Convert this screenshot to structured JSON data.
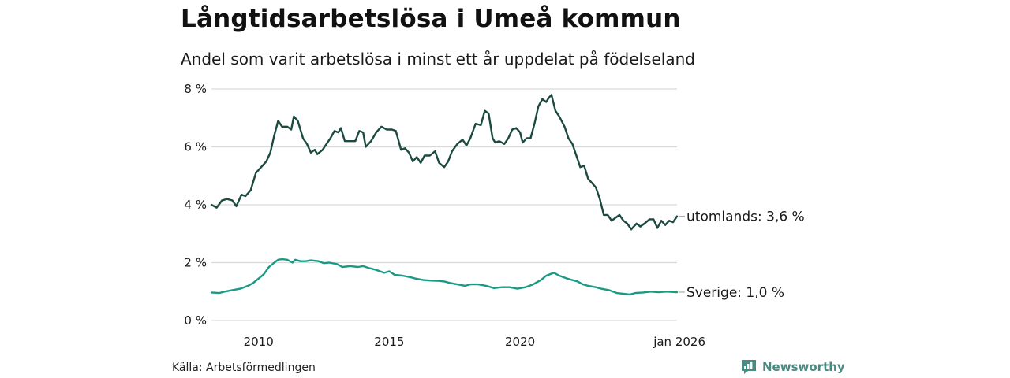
{
  "chart_data": {
    "type": "line",
    "title": "Långtidsarbetslösa i Umeå kommun",
    "subtitle": "Andel som varit arbetslösa i minst ett år uppdelat på födelseland",
    "xlabel": "",
    "ylabel": "",
    "xlim": [
      2008.2,
      2026.0
    ],
    "ylim": [
      0,
      8
    ],
    "grid": true,
    "y_ticks": [
      {
        "value": 0,
        "label": "0 %"
      },
      {
        "value": 2,
        "label": "2 %"
      },
      {
        "value": 4,
        "label": "4 %"
      },
      {
        "value": 6,
        "label": "6 %"
      },
      {
        "value": 8,
        "label": "8 %"
      }
    ],
    "x_ticks": [
      {
        "value": 2010,
        "label": "2010"
      },
      {
        "value": 2015,
        "label": "2015"
      },
      {
        "value": 2020,
        "label": "2020"
      },
      {
        "value": 2026.0,
        "label": "jan 2026"
      }
    ],
    "series": [
      {
        "name": "utomlands",
        "color": "#1c4a40",
        "end_label": "utomlands: 3,6 %",
        "points": [
          [
            2008.2,
            4.0
          ],
          [
            2008.4,
            3.9
          ],
          [
            2008.6,
            4.15
          ],
          [
            2008.8,
            4.2
          ],
          [
            2009.0,
            4.15
          ],
          [
            2009.15,
            3.95
          ],
          [
            2009.35,
            4.35
          ],
          [
            2009.5,
            4.3
          ],
          [
            2009.7,
            4.5
          ],
          [
            2009.9,
            5.1
          ],
          [
            2010.1,
            5.3
          ],
          [
            2010.3,
            5.5
          ],
          [
            2010.45,
            5.8
          ],
          [
            2010.6,
            6.4
          ],
          [
            2010.75,
            6.9
          ],
          [
            2010.9,
            6.7
          ],
          [
            2011.1,
            6.7
          ],
          [
            2011.25,
            6.6
          ],
          [
            2011.35,
            7.05
          ],
          [
            2011.5,
            6.9
          ],
          [
            2011.7,
            6.3
          ],
          [
            2011.85,
            6.1
          ],
          [
            2012.0,
            5.8
          ],
          [
            2012.15,
            5.9
          ],
          [
            2012.25,
            5.75
          ],
          [
            2012.45,
            5.9
          ],
          [
            2012.6,
            6.1
          ],
          [
            2012.75,
            6.3
          ],
          [
            2012.9,
            6.55
          ],
          [
            2013.05,
            6.5
          ],
          [
            2013.15,
            6.65
          ],
          [
            2013.3,
            6.2
          ],
          [
            2013.5,
            6.2
          ],
          [
            2013.7,
            6.2
          ],
          [
            2013.85,
            6.55
          ],
          [
            2014.0,
            6.5
          ],
          [
            2014.1,
            6.0
          ],
          [
            2014.3,
            6.2
          ],
          [
            2014.5,
            6.5
          ],
          [
            2014.7,
            6.7
          ],
          [
            2014.9,
            6.6
          ],
          [
            2015.1,
            6.6
          ],
          [
            2015.25,
            6.55
          ],
          [
            2015.45,
            5.9
          ],
          [
            2015.6,
            5.95
          ],
          [
            2015.75,
            5.8
          ],
          [
            2015.9,
            5.5
          ],
          [
            2016.05,
            5.65
          ],
          [
            2016.2,
            5.45
          ],
          [
            2016.35,
            5.7
          ],
          [
            2016.55,
            5.7
          ],
          [
            2016.75,
            5.85
          ],
          [
            2016.9,
            5.45
          ],
          [
            2017.1,
            5.3
          ],
          [
            2017.25,
            5.5
          ],
          [
            2017.4,
            5.85
          ],
          [
            2017.6,
            6.1
          ],
          [
            2017.8,
            6.25
          ],
          [
            2017.95,
            6.05
          ],
          [
            2018.1,
            6.3
          ],
          [
            2018.3,
            6.8
          ],
          [
            2018.5,
            6.75
          ],
          [
            2018.65,
            7.25
          ],
          [
            2018.8,
            7.15
          ],
          [
            2018.95,
            6.3
          ],
          [
            2019.05,
            6.15
          ],
          [
            2019.2,
            6.2
          ],
          [
            2019.4,
            6.1
          ],
          [
            2019.55,
            6.3
          ],
          [
            2019.7,
            6.6
          ],
          [
            2019.85,
            6.65
          ],
          [
            2020.0,
            6.5
          ],
          [
            2020.1,
            6.15
          ],
          [
            2020.25,
            6.3
          ],
          [
            2020.4,
            6.3
          ],
          [
            2020.55,
            6.8
          ],
          [
            2020.7,
            7.4
          ],
          [
            2020.85,
            7.65
          ],
          [
            2021.0,
            7.55
          ],
          [
            2021.1,
            7.7
          ],
          [
            2021.2,
            7.8
          ],
          [
            2021.35,
            7.25
          ],
          [
            2021.5,
            7.05
          ],
          [
            2021.7,
            6.7
          ],
          [
            2021.85,
            6.3
          ],
          [
            2022.0,
            6.1
          ],
          [
            2022.15,
            5.7
          ],
          [
            2022.3,
            5.3
          ],
          [
            2022.45,
            5.35
          ],
          [
            2022.6,
            4.9
          ],
          [
            2022.75,
            4.75
          ],
          [
            2022.9,
            4.6
          ],
          [
            2023.05,
            4.2
          ],
          [
            2023.2,
            3.65
          ],
          [
            2023.35,
            3.65
          ],
          [
            2023.5,
            3.45
          ],
          [
            2023.65,
            3.55
          ],
          [
            2023.8,
            3.65
          ],
          [
            2023.95,
            3.45
          ],
          [
            2024.1,
            3.35
          ],
          [
            2024.25,
            3.15
          ],
          [
            2024.45,
            3.35
          ],
          [
            2024.6,
            3.25
          ],
          [
            2024.75,
            3.35
          ],
          [
            2024.95,
            3.5
          ],
          [
            2025.1,
            3.5
          ],
          [
            2025.25,
            3.2
          ],
          [
            2025.4,
            3.45
          ],
          [
            2025.55,
            3.3
          ],
          [
            2025.7,
            3.45
          ],
          [
            2025.85,
            3.4
          ],
          [
            2026.0,
            3.6
          ]
        ]
      },
      {
        "name": "Sverige",
        "color": "#1a9a84",
        "end_label": "Sverige: 1,0 %",
        "points": [
          [
            2008.2,
            0.97
          ],
          [
            2008.5,
            0.95
          ],
          [
            2008.7,
            1.0
          ],
          [
            2009.0,
            1.05
          ],
          [
            2009.3,
            1.1
          ],
          [
            2009.6,
            1.2
          ],
          [
            2009.8,
            1.3
          ],
          [
            2010.0,
            1.45
          ],
          [
            2010.2,
            1.6
          ],
          [
            2010.4,
            1.85
          ],
          [
            2010.6,
            2.0
          ],
          [
            2010.75,
            2.1
          ],
          [
            2010.9,
            2.12
          ],
          [
            2011.1,
            2.1
          ],
          [
            2011.3,
            2.0
          ],
          [
            2011.4,
            2.1
          ],
          [
            2011.6,
            2.05
          ],
          [
            2011.8,
            2.05
          ],
          [
            2012.0,
            2.08
          ],
          [
            2012.3,
            2.05
          ],
          [
            2012.5,
            1.98
          ],
          [
            2012.7,
            2.0
          ],
          [
            2013.0,
            1.95
          ],
          [
            2013.2,
            1.85
          ],
          [
            2013.5,
            1.88
          ],
          [
            2013.8,
            1.85
          ],
          [
            2014.0,
            1.88
          ],
          [
            2014.2,
            1.82
          ],
          [
            2014.5,
            1.75
          ],
          [
            2014.8,
            1.65
          ],
          [
            2015.0,
            1.7
          ],
          [
            2015.2,
            1.58
          ],
          [
            2015.5,
            1.55
          ],
          [
            2015.8,
            1.5
          ],
          [
            2016.0,
            1.45
          ],
          [
            2016.3,
            1.4
          ],
          [
            2016.6,
            1.38
          ],
          [
            2016.9,
            1.37
          ],
          [
            2017.1,
            1.35
          ],
          [
            2017.3,
            1.3
          ],
          [
            2017.6,
            1.25
          ],
          [
            2017.9,
            1.2
          ],
          [
            2018.1,
            1.25
          ],
          [
            2018.4,
            1.25
          ],
          [
            2018.7,
            1.2
          ],
          [
            2019.0,
            1.12
          ],
          [
            2019.3,
            1.15
          ],
          [
            2019.6,
            1.15
          ],
          [
            2019.9,
            1.1
          ],
          [
            2020.2,
            1.15
          ],
          [
            2020.5,
            1.25
          ],
          [
            2020.8,
            1.4
          ],
          [
            2021.0,
            1.55
          ],
          [
            2021.2,
            1.62
          ],
          [
            2021.3,
            1.65
          ],
          [
            2021.5,
            1.55
          ],
          [
            2021.8,
            1.45
          ],
          [
            2022.0,
            1.4
          ],
          [
            2022.2,
            1.35
          ],
          [
            2022.4,
            1.25
          ],
          [
            2022.6,
            1.2
          ],
          [
            2022.9,
            1.15
          ],
          [
            2023.1,
            1.1
          ],
          [
            2023.4,
            1.05
          ],
          [
            2023.7,
            0.95
          ],
          [
            2024.0,
            0.92
          ],
          [
            2024.2,
            0.9
          ],
          [
            2024.4,
            0.95
          ],
          [
            2024.7,
            0.97
          ],
          [
            2025.0,
            1.0
          ],
          [
            2025.3,
            0.98
          ],
          [
            2025.6,
            1.0
          ],
          [
            2026.0,
            0.98
          ]
        ]
      }
    ]
  },
  "source": "Källa: Arbetsförmedlingen",
  "brand": {
    "name": "Newsworthy",
    "icon": "newsworthy-logo-icon",
    "color": "#4a8a82"
  },
  "colors": {
    "grid": "#d9d9d9",
    "axis_text": "#1a1a1a"
  }
}
